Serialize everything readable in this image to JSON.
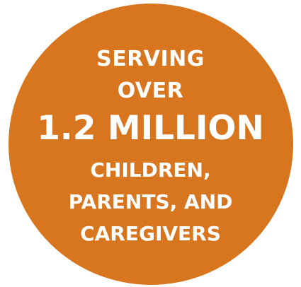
{
  "badge": {
    "color": "#d8761f",
    "text_color": "#ffffff",
    "lines": [
      "SERVING",
      "OVER",
      "1.2 MILLION",
      "CHILDREN,",
      "PARENTS, AND",
      "CAREGIVERS"
    ]
  }
}
